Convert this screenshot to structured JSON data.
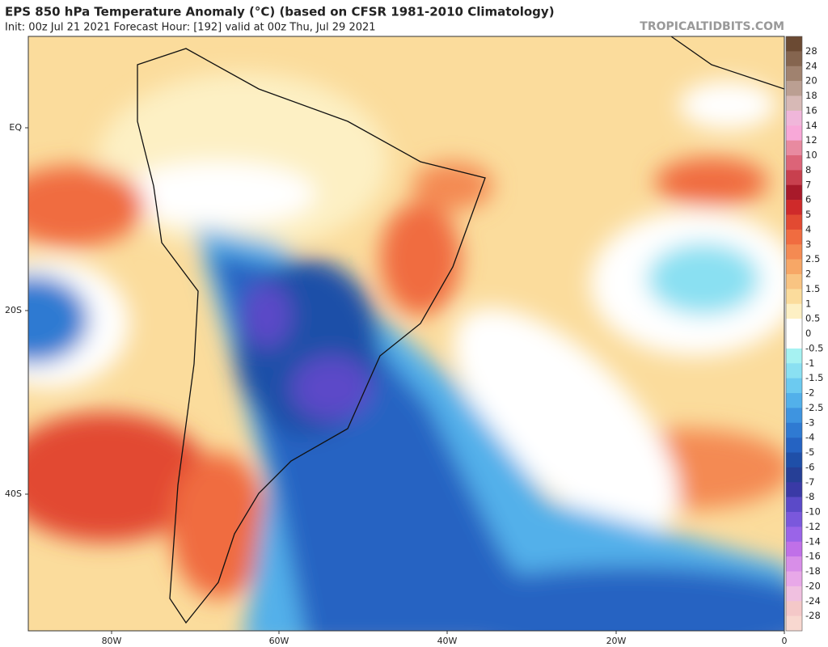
{
  "header": {
    "title": "EPS 850 hPa Temperature Anomaly (°C) (based on CFSR 1981-2010 Climatology)",
    "subtitle": "Init: 00z Jul 21 2021   Forecast Hour: [192]   valid at 00z Thu, Jul 29 2021",
    "source": "TROPICALTIDBITS.COM"
  },
  "map": {
    "lon_labels": [
      "80W",
      "60W",
      "40W",
      "20W",
      "0"
    ],
    "lat_labels": [
      "EQ",
      "20S",
      "40S"
    ]
  },
  "colorbar": {
    "labels": [
      28,
      24,
      20,
      18,
      16,
      14,
      12,
      10,
      8,
      7,
      6,
      5,
      4,
      3,
      2.5,
      2,
      1.5,
      1,
      0.5,
      0,
      -0.5,
      -1,
      -1.5,
      -2,
      -2.5,
      -3,
      -4,
      -5,
      -6,
      -7,
      -8,
      -10,
      -12,
      -14,
      -16,
      -18,
      -20,
      -24,
      -28
    ],
    "colors": [
      "#6b4a33",
      "#85654f",
      "#a0826f",
      "#bb9f92",
      "#d7b9b6",
      "#f0b6da",
      "#f8a8d8",
      "#e88aa0",
      "#dc6478",
      "#c8404e",
      "#a81a2a",
      "#cf2a2a",
      "#e24a32",
      "#f06c40",
      "#f48a52",
      "#f7a766",
      "#f9c482",
      "#fbdc9c",
      "#fdf0c4",
      "#ffffff",
      "#ffffff",
      "#a6f2f2",
      "#8ae0f2",
      "#6ccaf0",
      "#52b0ea",
      "#3e94e0",
      "#2f7ad2",
      "#2563c2",
      "#1f4fa8",
      "#263f96",
      "#3a3aa6",
      "#5b4ac8",
      "#7a58dc",
      "#9a64e8",
      "#c070e8",
      "#d88ee8",
      "#e8a8e8",
      "#f0c0e0",
      "#f4c8c8",
      "#f8d8d0"
    ]
  }
}
